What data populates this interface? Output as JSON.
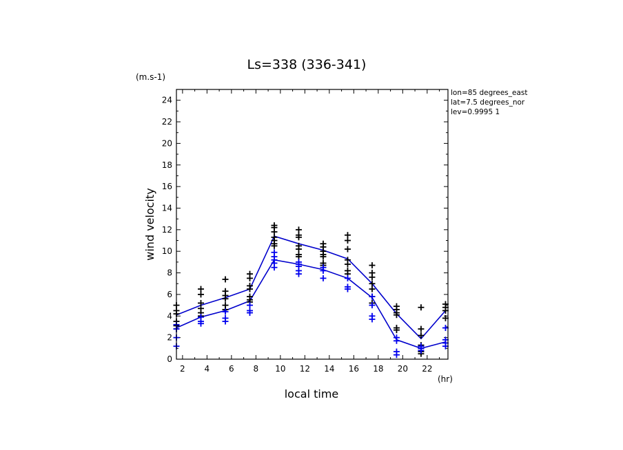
{
  "chart_data": {
    "type": "line",
    "title": "Ls=338 (336-341)",
    "xlabel": "local time",
    "x_unit": "(hr)",
    "ylabel": "wind velocity",
    "y_unit": "(m.s-1)",
    "xlim": [
      1.5,
      23.7
    ],
    "ylim": [
      0,
      25
    ],
    "x_ticks": [
      2,
      4,
      6,
      8,
      10,
      12,
      14,
      16,
      18,
      20,
      22
    ],
    "y_ticks": [
      0,
      2,
      4,
      6,
      8,
      10,
      12,
      14,
      16,
      18,
      20,
      22,
      24
    ],
    "annotations": [
      "lon=85 degrees_east",
      "lat=7.5 degrees_nor",
      "lev=0.9995 1"
    ],
    "legend": "none",
    "grid": false,
    "series": [
      {
        "color": "#0000cc",
        "x": [
          1.5,
          3.5,
          5.5,
          7.5,
          9.5,
          11.5,
          13.5,
          15.5,
          17.5,
          19.5,
          21.5,
          23.5
        ],
        "values": [
          4.1,
          5.0,
          5.7,
          6.5,
          11.4,
          10.7,
          10.1,
          9.3,
          7.0,
          4.2,
          1.9,
          4.5
        ]
      },
      {
        "color": "#0000cc",
        "x": [
          1.5,
          3.5,
          5.5,
          7.5,
          9.5,
          11.5,
          13.5,
          15.5,
          17.5,
          19.5,
          21.5,
          23.5
        ],
        "values": [
          2.9,
          3.9,
          4.5,
          5.4,
          9.2,
          8.8,
          8.3,
          7.5,
          5.7,
          1.8,
          1.0,
          1.6
        ]
      }
    ],
    "scatter_black": [
      {
        "x": 1.5,
        "y": [
          5.0,
          4.5,
          4.2,
          3.5,
          3.1,
          2.8
        ]
      },
      {
        "x": 3.5,
        "y": [
          6.5,
          6.0,
          5.2,
          4.7,
          4.3,
          4.0
        ]
      },
      {
        "x": 5.5,
        "y": [
          7.4,
          6.3,
          5.9,
          5.6,
          5.0,
          4.6
        ]
      },
      {
        "x": 7.5,
        "y": [
          7.9,
          7.5,
          6.8,
          6.5,
          5.8,
          5.5,
          5.3
        ]
      },
      {
        "x": 9.5,
        "y": [
          12.4,
          12.2,
          11.8,
          11.3,
          11.0,
          10.7,
          10.5
        ]
      },
      {
        "x": 11.5,
        "y": [
          12.0,
          11.5,
          11.3,
          10.5,
          10.2,
          9.7,
          9.5
        ]
      },
      {
        "x": 13.5,
        "y": [
          10.7,
          10.4,
          10.0,
          9.7,
          9.5,
          8.9,
          8.7
        ]
      },
      {
        "x": 15.5,
        "y": [
          11.5,
          11.0,
          10.2,
          9.2,
          8.8,
          8.2,
          7.9
        ]
      },
      {
        "x": 17.5,
        "y": [
          8.7,
          8.0,
          7.6,
          7.0,
          6.5,
          5.8,
          5.2
        ]
      },
      {
        "x": 19.5,
        "y": [
          4.9,
          4.6,
          4.3,
          4.1,
          2.9,
          2.7
        ]
      },
      {
        "x": 21.5,
        "y": [
          4.8,
          2.8,
          2.2,
          1.3,
          1.0,
          0.7,
          0.5
        ]
      },
      {
        "x": 23.5,
        "y": [
          5.1,
          4.8,
          4.5,
          3.8
        ]
      }
    ],
    "scatter_blue": [
      {
        "x": 1.5,
        "y": [
          3.2,
          2.8,
          2.0,
          1.2
        ]
      },
      {
        "x": 3.5,
        "y": [
          3.9,
          3.5,
          3.3
        ]
      },
      {
        "x": 5.5,
        "y": [
          4.4,
          3.8,
          3.5
        ]
      },
      {
        "x": 7.5,
        "y": [
          5.0,
          4.5,
          4.3
        ]
      },
      {
        "x": 9.5,
        "y": [
          9.9,
          9.5,
          9.2,
          8.9,
          8.5
        ]
      },
      {
        "x": 11.5,
        "y": [
          9.0,
          8.8,
          8.6,
          8.2,
          7.9
        ]
      },
      {
        "x": 13.5,
        "y": [
          8.5,
          8.2,
          7.5
        ]
      },
      {
        "x": 15.5,
        "y": [
          7.5,
          6.7,
          6.5
        ]
      },
      {
        "x": 17.5,
        "y": [
          5.8,
          5.0,
          4.0,
          3.7
        ]
      },
      {
        "x": 19.5,
        "y": [
          2.0,
          1.7,
          0.7,
          0.4
        ]
      },
      {
        "x": 21.5,
        "y": [
          1.2,
          1.0,
          0.8
        ]
      },
      {
        "x": 23.5,
        "y": [
          2.9,
          1.8,
          1.5,
          1.2
        ]
      }
    ]
  }
}
